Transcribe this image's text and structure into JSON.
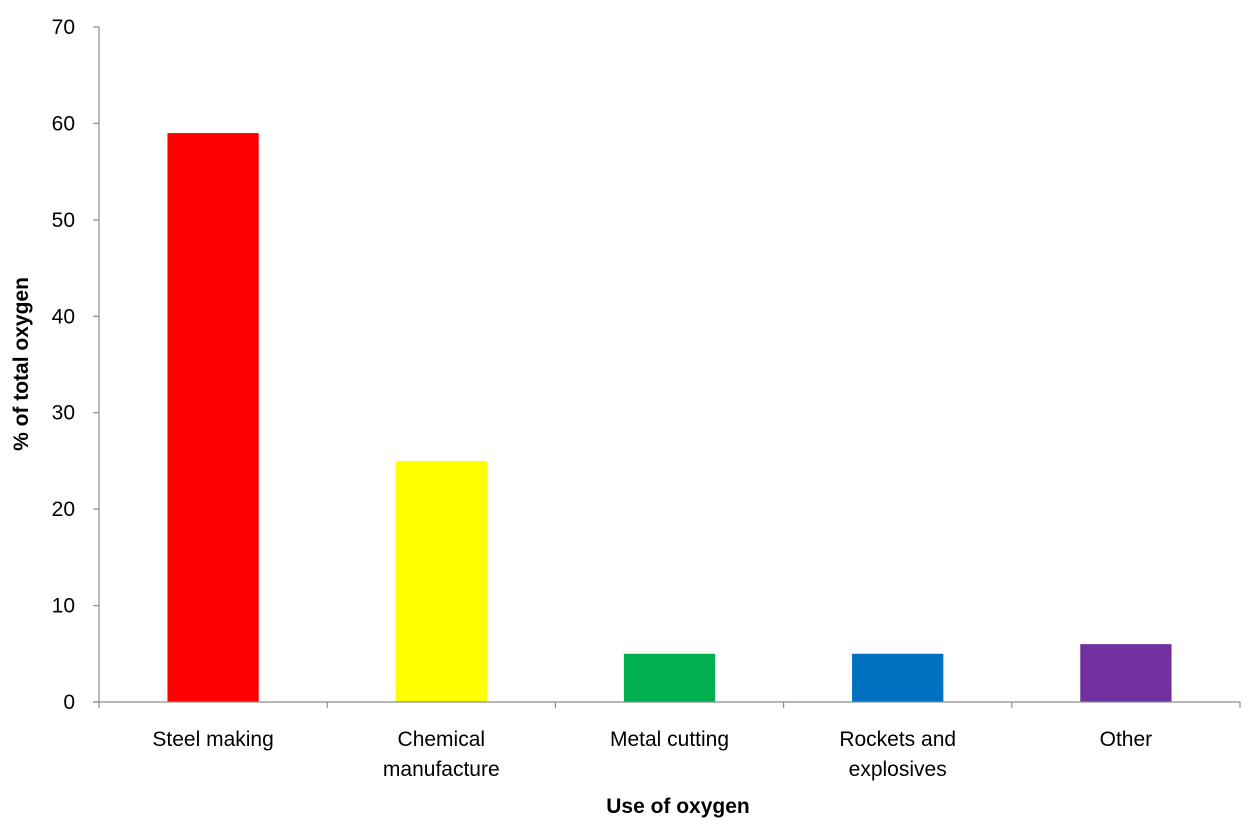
{
  "chart_data": {
    "type": "bar",
    "title": "",
    "xlabel": "Use of oxygen",
    "ylabel": "% of total oxygen",
    "ylim": [
      0,
      70
    ],
    "yticks": [
      0,
      10,
      20,
      30,
      40,
      50,
      60,
      70
    ],
    "grid": false,
    "legend": "none",
    "categories": [
      [
        "Steel making"
      ],
      [
        "Chemical",
        "manufacture"
      ],
      [
        "Metal cutting"
      ],
      [
        "Rockets and",
        "explosives"
      ],
      [
        "Other"
      ]
    ],
    "values": [
      59,
      25,
      5,
      5,
      6
    ],
    "colors": [
      "#ff0000",
      "#ffff00",
      "#00b050",
      "#0070c0",
      "#7030a0"
    ]
  }
}
